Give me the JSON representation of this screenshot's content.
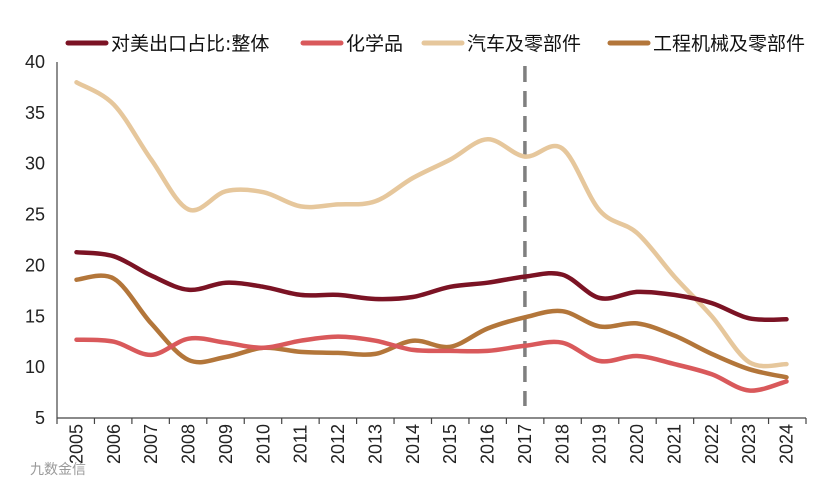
{
  "chart_data": {
    "type": "line",
    "title": "",
    "xlabel": "",
    "ylabel": "",
    "ylim": [
      5,
      40
    ],
    "yticks": [
      "5",
      "10",
      "15",
      "20",
      "25",
      "30",
      "35",
      "40"
    ],
    "categories": [
      "2005",
      "2006",
      "2007",
      "2008",
      "2009",
      "2010",
      "2011",
      "2012",
      "2013",
      "2014",
      "2015",
      "2016",
      "2017",
      "2018",
      "2019",
      "2020",
      "2021",
      "2022",
      "2023",
      "2024"
    ],
    "legend_position": "top",
    "reference_line": {
      "x": "2017",
      "style": "dashed",
      "color": "#7f7f7f"
    },
    "series": [
      {
        "name": "对美出口占比:整体",
        "color": "#7b1324",
        "values": [
          21.3,
          20.9,
          19.0,
          17.6,
          18.3,
          17.9,
          17.1,
          17.1,
          16.7,
          16.9,
          17.9,
          18.3,
          18.9,
          19.1,
          16.8,
          17.4,
          17.1,
          16.3,
          14.8,
          14.7
        ]
      },
      {
        "name": "化学品",
        "color": "#d9595b",
        "values": [
          12.7,
          12.5,
          11.2,
          12.8,
          12.4,
          11.9,
          12.6,
          13.0,
          12.6,
          11.7,
          11.6,
          11.6,
          12.1,
          12.4,
          10.6,
          11.1,
          10.3,
          9.3,
          7.7,
          8.6
        ]
      },
      {
        "name": "汽车及零部件",
        "color": "#e6c79c",
        "values": [
          38.0,
          35.8,
          30.4,
          25.5,
          27.3,
          27.2,
          25.8,
          26.0,
          26.3,
          28.6,
          30.4,
          32.4,
          30.7,
          31.5,
          25.4,
          23.2,
          18.9,
          15.0,
          10.5,
          10.3
        ]
      },
      {
        "name": "工程机械及零部件",
        "color": "#b3763a",
        "values": [
          18.6,
          18.7,
          14.3,
          10.7,
          11.0,
          11.9,
          11.5,
          11.4,
          11.3,
          12.6,
          12.0,
          13.8,
          14.9,
          15.5,
          14.0,
          14.3,
          13.1,
          11.3,
          9.8,
          9.0
        ]
      }
    ]
  },
  "watermark": "九数金信"
}
